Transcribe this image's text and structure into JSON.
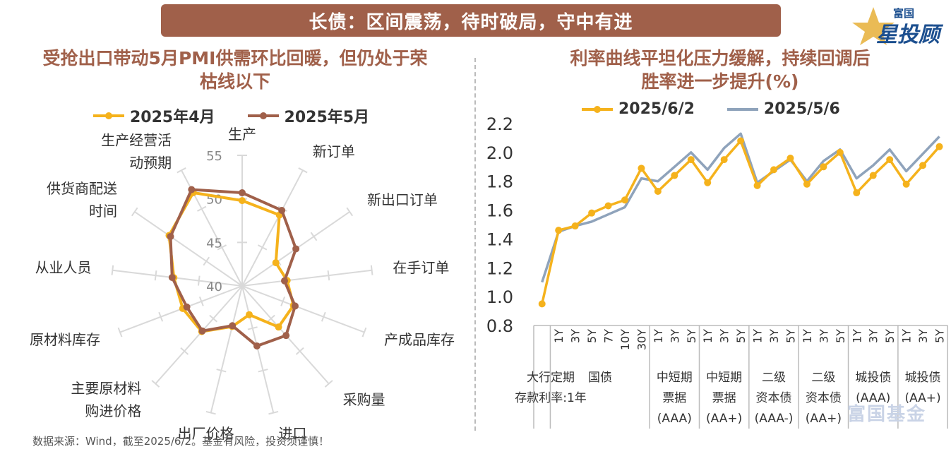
{
  "banner": {
    "title": "长债：区间震荡，待时破局，守中有进"
  },
  "brand": {
    "small": "富国",
    "big": "星投顾"
  },
  "watermark": "富国基金",
  "footnote": "数据来源：Wind，截至2025/6/2。基金有风险，投资须谨慎！",
  "colors": {
    "accent": "#a0604a",
    "gold": "#f5b21c",
    "brown": "#a0604a",
    "steel": "#8fa3bb"
  },
  "left_chart": {
    "title_line1": "受抢出口带动5月PMI供需环比回暖，但仍处于荣",
    "title_line2": "枯线以下",
    "legend": [
      "2025年4月",
      "2025年5月"
    ]
  },
  "right_chart": {
    "title_line1": "利率曲线平坦化压力缓解，持续回调后",
    "title_line2": "胜率进一步提升(%)",
    "legend": [
      "2025/6/2",
      "2025/5/6"
    ]
  },
  "chart_data": [
    {
      "type": "radar",
      "title": "受抢出口带动5月PMI供需环比回暖，但仍处于荣枯线以下",
      "axes": [
        {
          "label": [
            "生产"
          ],
          "anchor": "middle"
        },
        {
          "label": [
            "新订单"
          ],
          "anchor": "start"
        },
        {
          "label": [
            "新出口订单"
          ],
          "anchor": "start"
        },
        {
          "label": [
            "在手订单"
          ],
          "anchor": "start"
        },
        {
          "label": [
            "产成品库存"
          ],
          "anchor": "start"
        },
        {
          "label": [
            "采购量"
          ],
          "anchor": "start"
        },
        {
          "label": [
            "进口"
          ],
          "anchor": "start"
        },
        {
          "label": [
            "出厂价格"
          ],
          "anchor": "middle"
        },
        {
          "label": [
            "主要原材料",
            "购进价格"
          ],
          "anchor": "end"
        },
        {
          "label": [
            "原材料库存"
          ],
          "anchor": "end"
        },
        {
          "label": [
            "从业人员"
          ],
          "anchor": "end"
        },
        {
          "label": [
            "供货商配送",
            "时间"
          ],
          "anchor": "end"
        },
        {
          "label": [
            "生产经营活",
            "动预期"
          ],
          "anchor": "end"
        }
      ],
      "rmin": 40,
      "rmax": 55,
      "ticks": [
        40,
        45,
        50,
        55
      ],
      "series": [
        {
          "name": "2025年4月",
          "color": "#f5b21c",
          "values": [
            49.8,
            49.2,
            44.7,
            45.2,
            46.3,
            46.3,
            43.4,
            44.8,
            47.0,
            47.3,
            47.9,
            50.2,
            52.1
          ]
        },
        {
          "name": "2025年5月",
          "color": "#a0604a",
          "values": [
            50.7,
            49.8,
            47.5,
            44.9,
            46.5,
            47.6,
            47.1,
            44.7,
            46.9,
            46.8,
            48.1,
            50.0,
            52.5
          ]
        }
      ]
    },
    {
      "type": "line",
      "title": "利率曲线平坦化压力缓解，持续回调后胜率进一步提升(%)",
      "ylim": [
        0.8,
        2.2
      ],
      "yticks": [
        "2.2",
        "2.0",
        "1.8",
        "1.6",
        "1.4",
        "1.2",
        "1.0",
        "0.8"
      ],
      "x": [
        "",
        "1Y",
        "3Y",
        "5Y",
        "7Y",
        "10Y",
        "30Y",
        "1Y",
        "3Y",
        "5Y",
        "1Y",
        "3Y",
        "5Y",
        "1Y",
        "3Y",
        "5Y",
        "1Y",
        "3Y",
        "5Y",
        "1Y",
        "3Y",
        "5Y",
        "1Y",
        "3Y",
        "5Y"
      ],
      "groups": [
        {
          "label": [
            "大行定期",
            "存款利率:1年"
          ]
        },
        {
          "label": [
            "国债"
          ]
        },
        {
          "label": [
            "中短期",
            "票据",
            "(AAA)"
          ]
        },
        {
          "label": [
            "中短期",
            "票据",
            "(AA+)"
          ]
        },
        {
          "label": [
            "二级",
            "资本债",
            "(AAA-)"
          ]
        },
        {
          "label": [
            "二级",
            "资本债",
            "(AA+)"
          ]
        },
        {
          "label": [
            "城投债",
            "(AAA)"
          ]
        },
        {
          "label": [
            "城投债",
            "(AA+)"
          ]
        }
      ],
      "series": [
        {
          "name": "2025/6/2",
          "color": "#f5b21c",
          "values": [
            0.95,
            1.46,
            1.49,
            1.58,
            1.63,
            1.67,
            1.89,
            1.73,
            1.84,
            1.95,
            1.79,
            1.95,
            2.08,
            1.77,
            1.88,
            1.96,
            1.78,
            1.9,
            2.0,
            1.72,
            1.84,
            1.95,
            1.78,
            1.91,
            2.04
          ]
        },
        {
          "name": "2025/5/6",
          "color": "#8fa3bb",
          "values": [
            1.1,
            1.45,
            1.49,
            1.52,
            1.57,
            1.62,
            1.82,
            1.8,
            1.9,
            2.0,
            1.88,
            2.03,
            2.13,
            1.79,
            1.87,
            1.95,
            1.8,
            1.94,
            2.02,
            1.82,
            1.91,
            2.02,
            1.87,
            1.99,
            2.11
          ]
        }
      ]
    }
  ]
}
